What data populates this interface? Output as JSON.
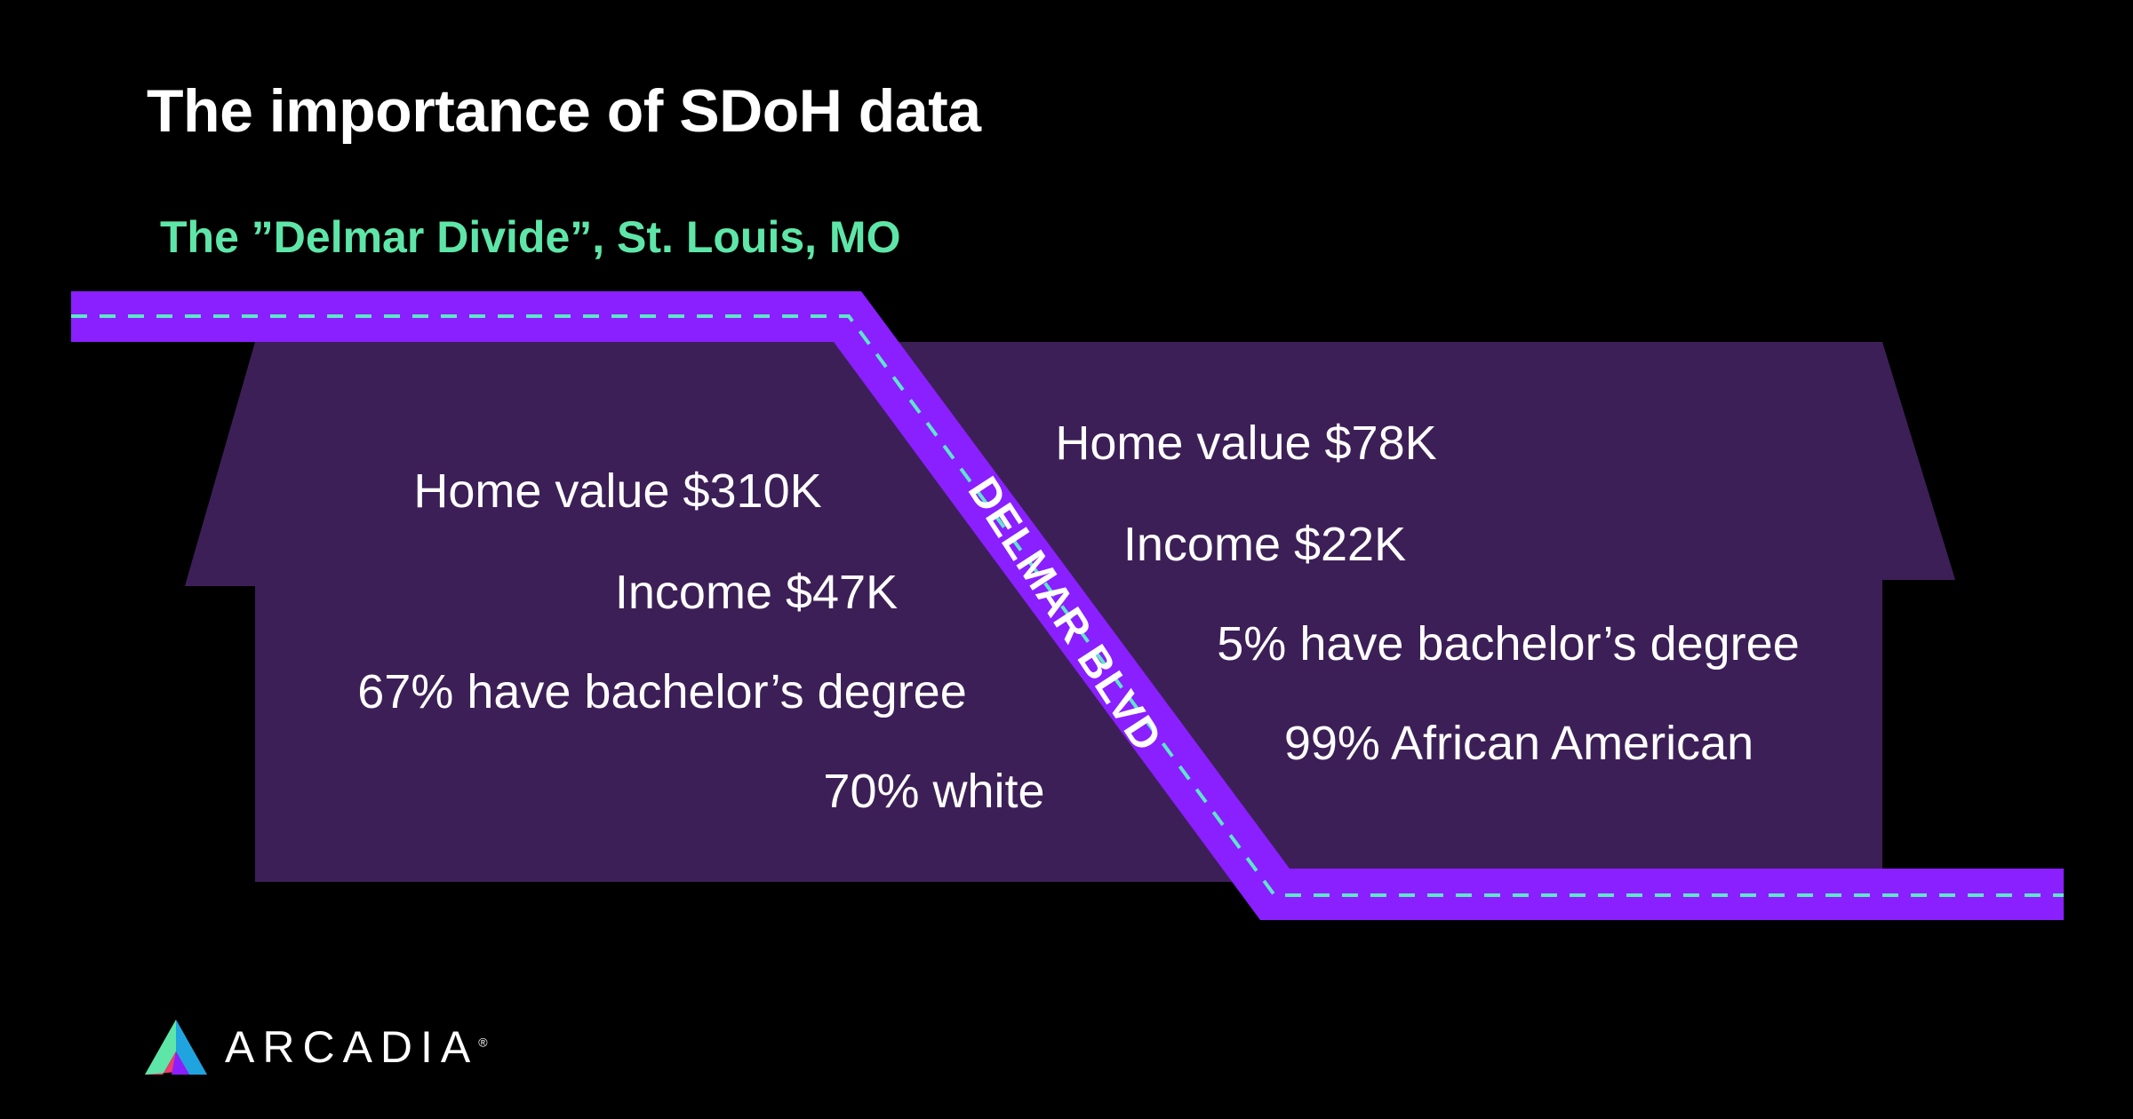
{
  "title": "The importance of SDoH data",
  "subtitle": "The ”Delmar Divide”, St. Louis, MO",
  "road_label": "DELMAR BLVD",
  "left_stats": {
    "home_value": "Home value $310K",
    "income": "Income $47K",
    "degree": "67% have bachelor’s degree",
    "race": "70% white"
  },
  "right_stats": {
    "home_value": "Home value $78K",
    "income": "Income $22K",
    "degree": "5% have bachelor’s degree",
    "race": "99% African American"
  },
  "logo": {
    "name": "ARCADIA",
    "mark": "®"
  },
  "colors": {
    "background": "#000000",
    "house": "#3d1f57",
    "road": "#8a1fff",
    "road_dash": "#5ee6c8",
    "subtitle": "#5ee6a8",
    "text": "#ffffff"
  }
}
